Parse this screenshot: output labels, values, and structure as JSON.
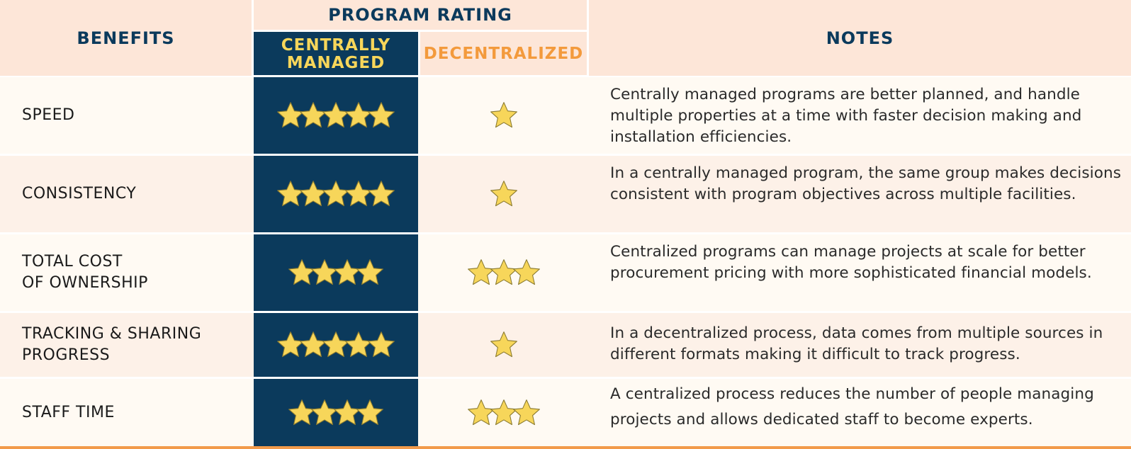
{
  "header": {
    "benefits": "BENEFITS",
    "program_rating": "PROGRAM RATING",
    "centrally_managed": "CENTRALLY\nMANAGED",
    "decentralized": "DECENTRALIZED",
    "notes": "NOTES"
  },
  "colors": {
    "navy": "#0b3a5c",
    "header_bg": "#fde6d8",
    "star": "#f7d65a",
    "decentralized_text": "#f39a3c",
    "centrally_text": "#f7d65a",
    "bottom_rule": "#f29a4a"
  },
  "rows": [
    {
      "benefit": "SPEED",
      "centrally_stars": 5,
      "decentralized_stars": 1,
      "notes": "Centrally managed programs are better planned, and handle multiple properties at a time with faster decision making and installation efficiencies."
    },
    {
      "benefit": "CONSISTENCY",
      "centrally_stars": 5,
      "decentralized_stars": 1,
      "notes": "In a centrally managed program, the same group makes decisions consistent with program objectives across multiple facilities."
    },
    {
      "benefit": "TOTAL COST\nOF OWNERSHIP",
      "centrally_stars": 4,
      "decentralized_stars": 3,
      "notes": "Centralized programs can manage projects at scale for better procurement pricing with more sophisticated financial models."
    },
    {
      "benefit": "TRACKING & SHARING\nPROGRESS",
      "centrally_stars": 5,
      "decentralized_stars": 1,
      "notes": "In a decentralized process, data comes from multiple sources in different formats making it difficult to track progress."
    },
    {
      "benefit": "STAFF TIME",
      "centrally_stars": 4,
      "decentralized_stars": 3,
      "notes": "A centralized process reduces the number of people managing projects and allows dedicated staff to become experts."
    }
  ]
}
